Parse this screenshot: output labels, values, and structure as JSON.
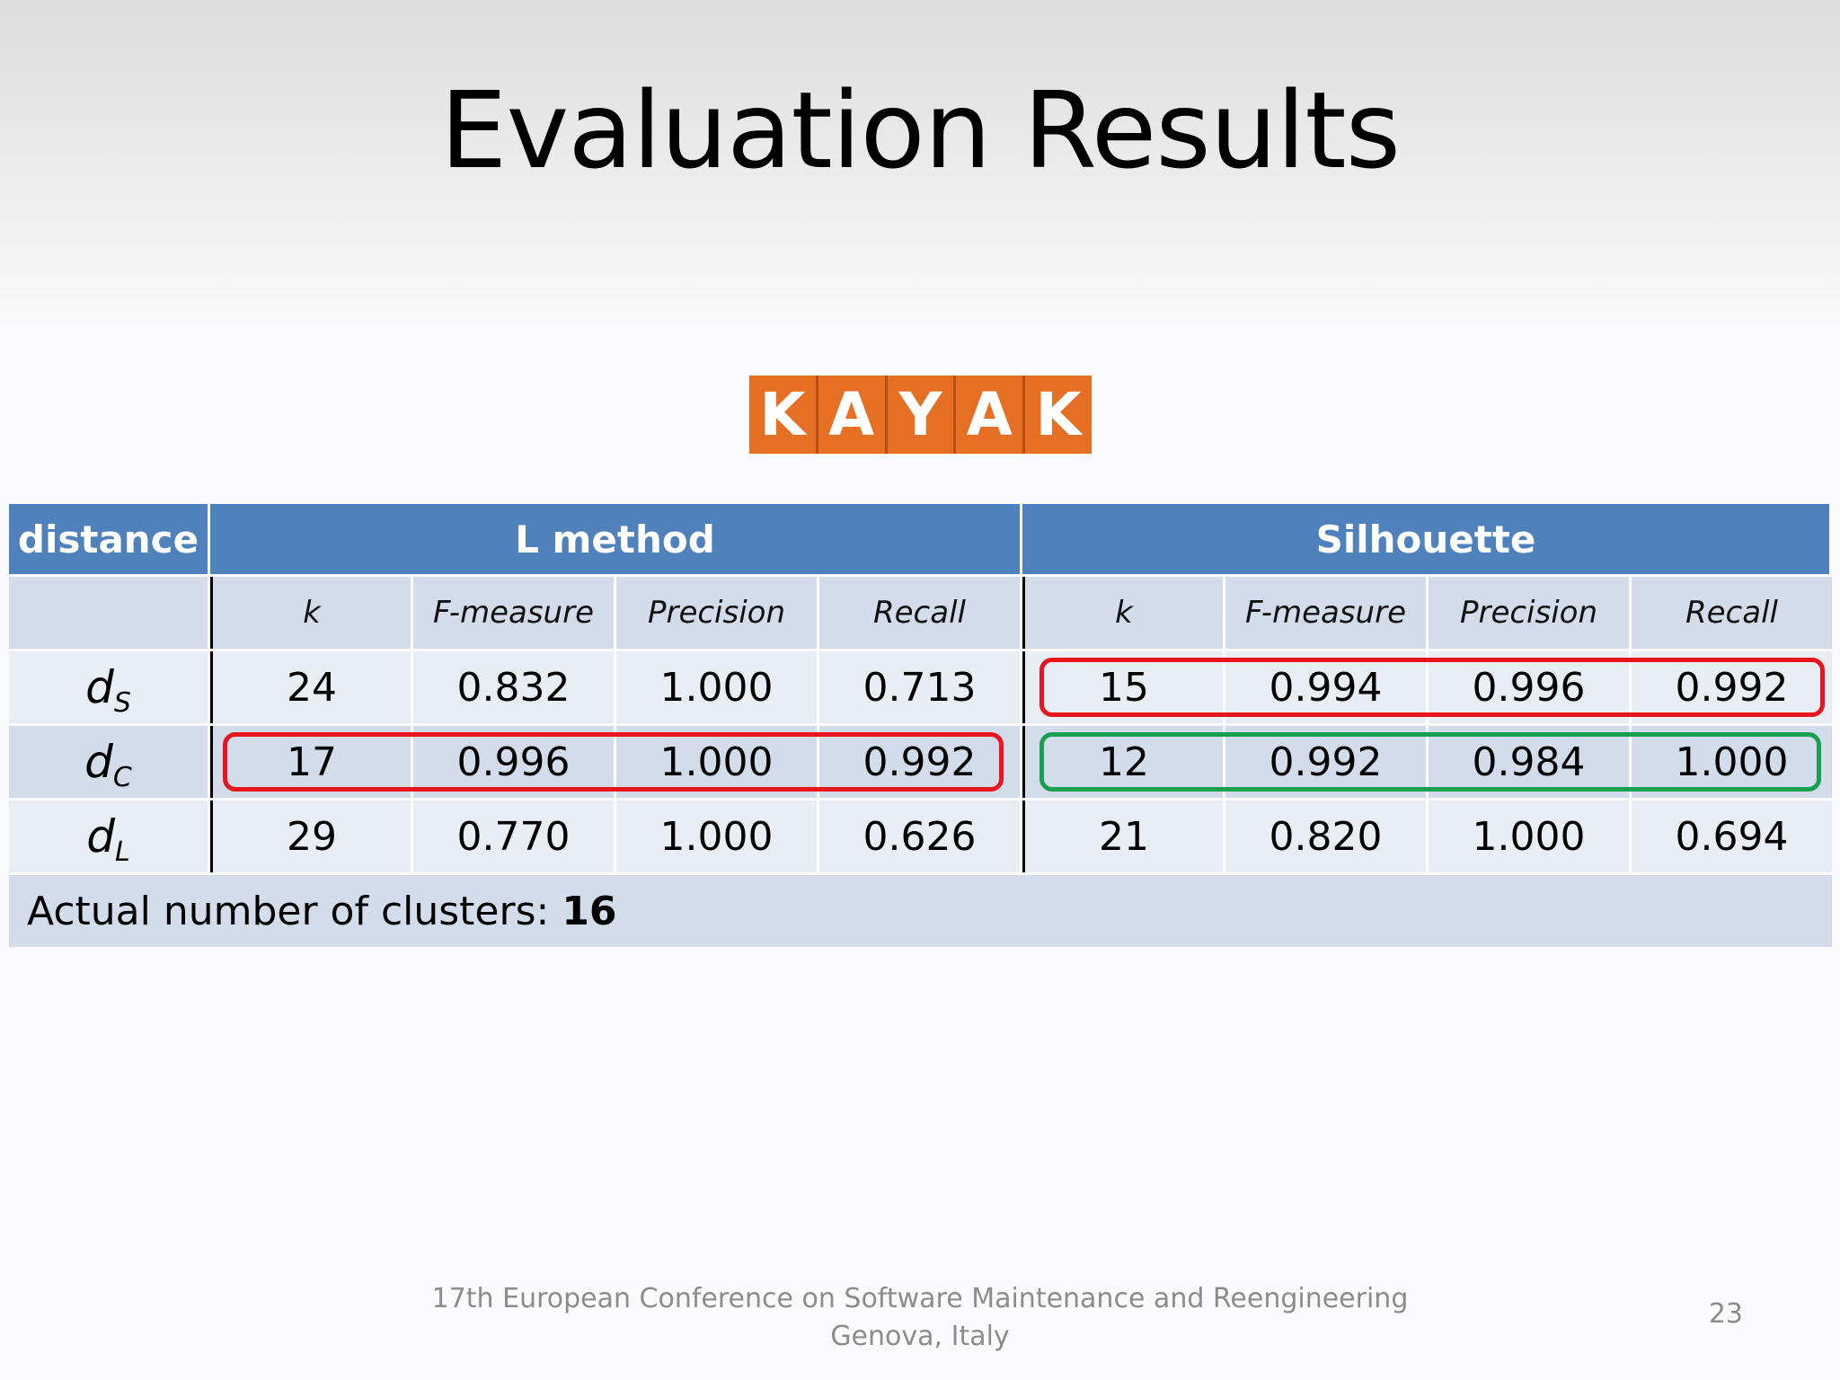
{
  "slide": {
    "title": "Evaluation Results",
    "logo_letters": [
      "K",
      "A",
      "Y",
      "A",
      "K"
    ],
    "footer_line1": "17th European Conference on Software Maintenance and Reengineering",
    "footer_line2": "Genova, Italy",
    "page_number": "23"
  },
  "table": {
    "header": {
      "distance": "distance",
      "l_method": "L method",
      "silhouette": "Silhouette"
    },
    "subheader": [
      "k",
      "F-measure",
      "Precision",
      "Recall",
      "k",
      "F-measure",
      "Precision",
      "Recall"
    ],
    "rows": [
      {
        "label": "d",
        "sub": "S",
        "values": [
          "24",
          "0.832",
          "1.000",
          "0.713",
          "15",
          "0.994",
          "0.996",
          "0.992"
        ]
      },
      {
        "label": "d",
        "sub": "C",
        "values": [
          "17",
          "0.996",
          "1.000",
          "0.992",
          "12",
          "0.992",
          "0.984",
          "1.000"
        ]
      },
      {
        "label": "d",
        "sub": "L",
        "values": [
          "29",
          "0.770",
          "1.000",
          "0.626",
          "21",
          "0.820",
          "1.000",
          "0.694"
        ]
      }
    ],
    "footer_label": "Actual number of clusters: ",
    "footer_value": "16"
  },
  "colors": {
    "header_blue": "#4f81bd",
    "highlight_red": "#e8141e",
    "highlight_green": "#18a050",
    "logo_orange": "#e56f23"
  }
}
